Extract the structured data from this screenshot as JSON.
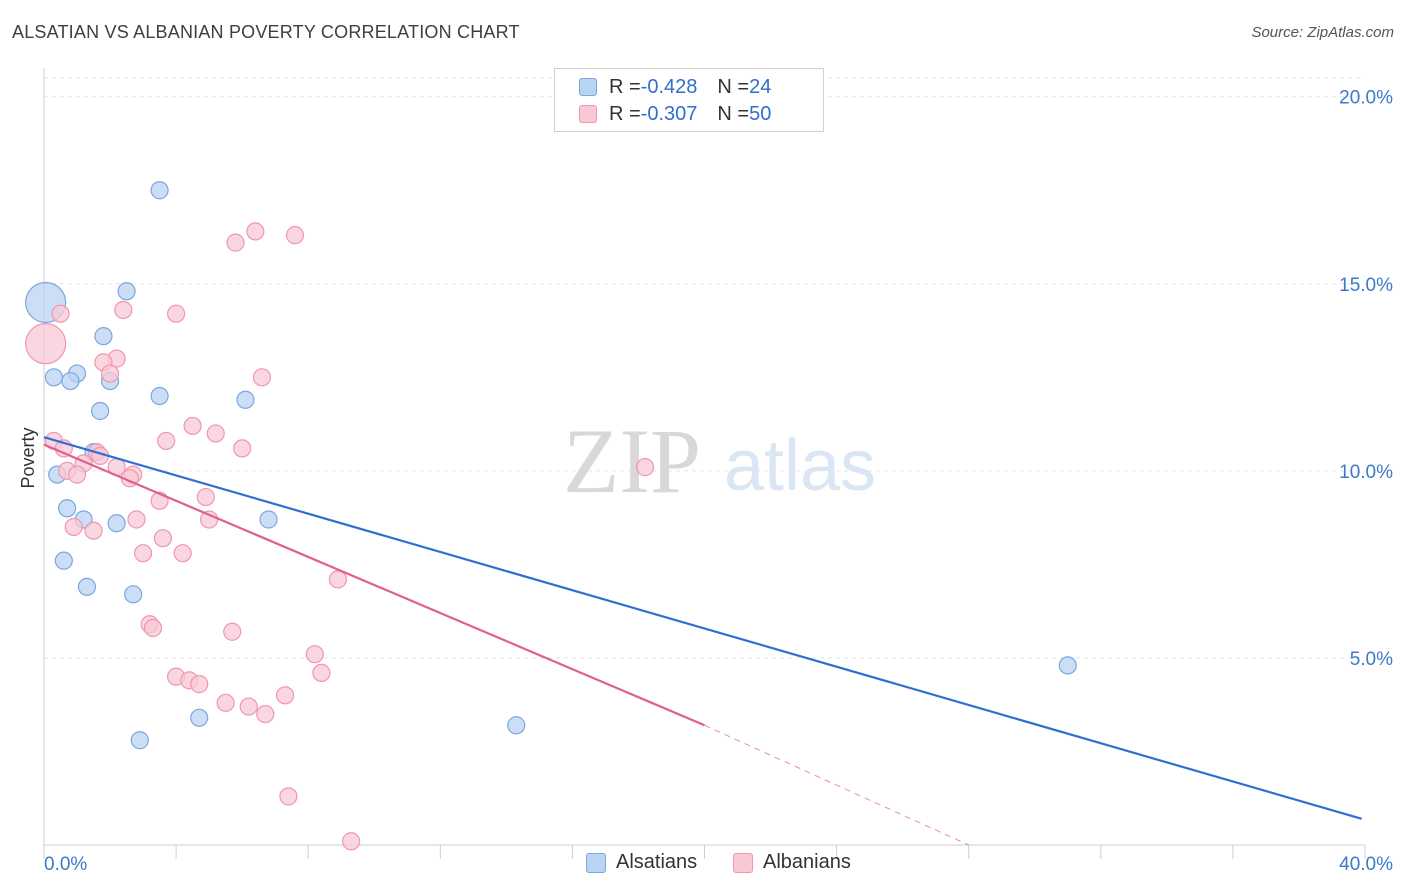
{
  "title": "ALSATIAN VS ALBANIAN POVERTY CORRELATION CHART",
  "source": "Source: ZipAtlas.com",
  "watermark": {
    "zip": "ZIP",
    "atlas": "atlas"
  },
  "legend": {
    "rows": [
      {
        "r_label": "R = ",
        "r_value": "-0.428",
        "n_label": "N = ",
        "n_value": "24"
      },
      {
        "r_label": "R = ",
        "r_value": "-0.307",
        "n_label": "N = ",
        "n_value": "50"
      }
    ]
  },
  "bottom_legend": [
    "Alsatians",
    "Albanians"
  ],
  "colors": {
    "alsatian_fill": "#b9d3f3",
    "alsatian_stroke": "#7aa7e0",
    "alsatian_line": "#2f6fcf",
    "albanian_fill": "#f8c8d5",
    "albanian_stroke": "#ef96b0",
    "albanian_line": "#e0608a",
    "axis_label": "#3d78c9"
  },
  "chart_data": {
    "type": "scatter",
    "title": "ALSATIAN VS ALBANIAN POVERTY CORRELATION CHART",
    "xlabel": "",
    "ylabel": "Poverty",
    "xlim": [
      0,
      40
    ],
    "ylim": [
      0,
      20.5
    ],
    "x_tick_labels": [
      {
        "value": 0,
        "label": "0.0%"
      },
      {
        "value": 40,
        "label": "40.0%"
      }
    ],
    "y_tick_labels": [
      {
        "value": 5,
        "label": "5.0%"
      },
      {
        "value": 10,
        "label": "10.0%"
      },
      {
        "value": 15,
        "label": "15.0%"
      },
      {
        "value": 20,
        "label": "20.0%"
      }
    ],
    "grid": true,
    "series": [
      {
        "name": "Alsatians",
        "points": [
          [
            0.05,
            14.5,
            "large"
          ],
          [
            3.5,
            17.5
          ],
          [
            2.5,
            14.8
          ],
          [
            1.8,
            13.6
          ],
          [
            1.0,
            12.6
          ],
          [
            0.3,
            12.5
          ],
          [
            0.8,
            12.4
          ],
          [
            2.0,
            12.4
          ],
          [
            3.5,
            12.0
          ],
          [
            6.1,
            11.9
          ],
          [
            1.7,
            11.6
          ],
          [
            1.5,
            10.5
          ],
          [
            0.4,
            9.9
          ],
          [
            0.7,
            9.0
          ],
          [
            1.2,
            8.7
          ],
          [
            2.2,
            8.6
          ],
          [
            6.8,
            8.7
          ],
          [
            0.6,
            7.6
          ],
          [
            1.3,
            6.9
          ],
          [
            2.7,
            6.7
          ],
          [
            31.0,
            4.8
          ],
          [
            4.7,
            3.4
          ],
          [
            14.3,
            3.2
          ],
          [
            2.9,
            2.8
          ]
        ],
        "trend": {
          "x": [
            0,
            39.9
          ],
          "y": [
            10.9,
            0.7
          ]
        }
      },
      {
        "name": "Albanians",
        "points": [
          [
            0.05,
            13.4,
            "large"
          ],
          [
            6.4,
            16.4
          ],
          [
            7.6,
            16.3
          ],
          [
            5.8,
            16.1
          ],
          [
            0.5,
            14.2
          ],
          [
            2.4,
            14.3
          ],
          [
            4.0,
            14.2
          ],
          [
            2.2,
            13.0
          ],
          [
            1.8,
            12.9
          ],
          [
            2.0,
            12.6
          ],
          [
            6.6,
            12.5
          ],
          [
            4.5,
            11.2
          ],
          [
            5.2,
            11.0
          ],
          [
            3.7,
            10.8
          ],
          [
            6.0,
            10.6
          ],
          [
            0.3,
            10.8
          ],
          [
            0.6,
            10.6
          ],
          [
            1.6,
            10.5
          ],
          [
            1.7,
            10.4
          ],
          [
            1.2,
            10.2
          ],
          [
            0.7,
            10.0
          ],
          [
            1.0,
            9.9
          ],
          [
            2.2,
            10.1
          ],
          [
            2.7,
            9.9
          ],
          [
            2.6,
            9.8
          ],
          [
            18.2,
            10.1
          ],
          [
            3.5,
            9.2
          ],
          [
            4.9,
            9.3
          ],
          [
            2.8,
            8.7
          ],
          [
            5.0,
            8.7
          ],
          [
            0.9,
            8.5
          ],
          [
            1.5,
            8.4
          ],
          [
            3.6,
            8.2
          ],
          [
            3.0,
            7.8
          ],
          [
            4.2,
            7.8
          ],
          [
            8.9,
            7.1
          ],
          [
            3.2,
            5.9
          ],
          [
            3.3,
            5.8
          ],
          [
            5.7,
            5.7
          ],
          [
            8.2,
            5.1
          ],
          [
            8.4,
            4.6
          ],
          [
            4.0,
            4.5
          ],
          [
            4.4,
            4.4
          ],
          [
            4.7,
            4.3
          ],
          [
            7.3,
            4.0
          ],
          [
            5.5,
            3.8
          ],
          [
            6.2,
            3.7
          ],
          [
            6.7,
            3.5
          ],
          [
            7.4,
            1.3
          ],
          [
            9.3,
            0.1
          ]
        ],
        "trend": {
          "x": [
            0,
            20.0
          ],
          "y": [
            10.7,
            3.2
          ]
        },
        "trend_extension": {
          "x": [
            20.0,
            28.0
          ],
          "y": [
            3.2,
            0.0
          ]
        }
      }
    ]
  }
}
